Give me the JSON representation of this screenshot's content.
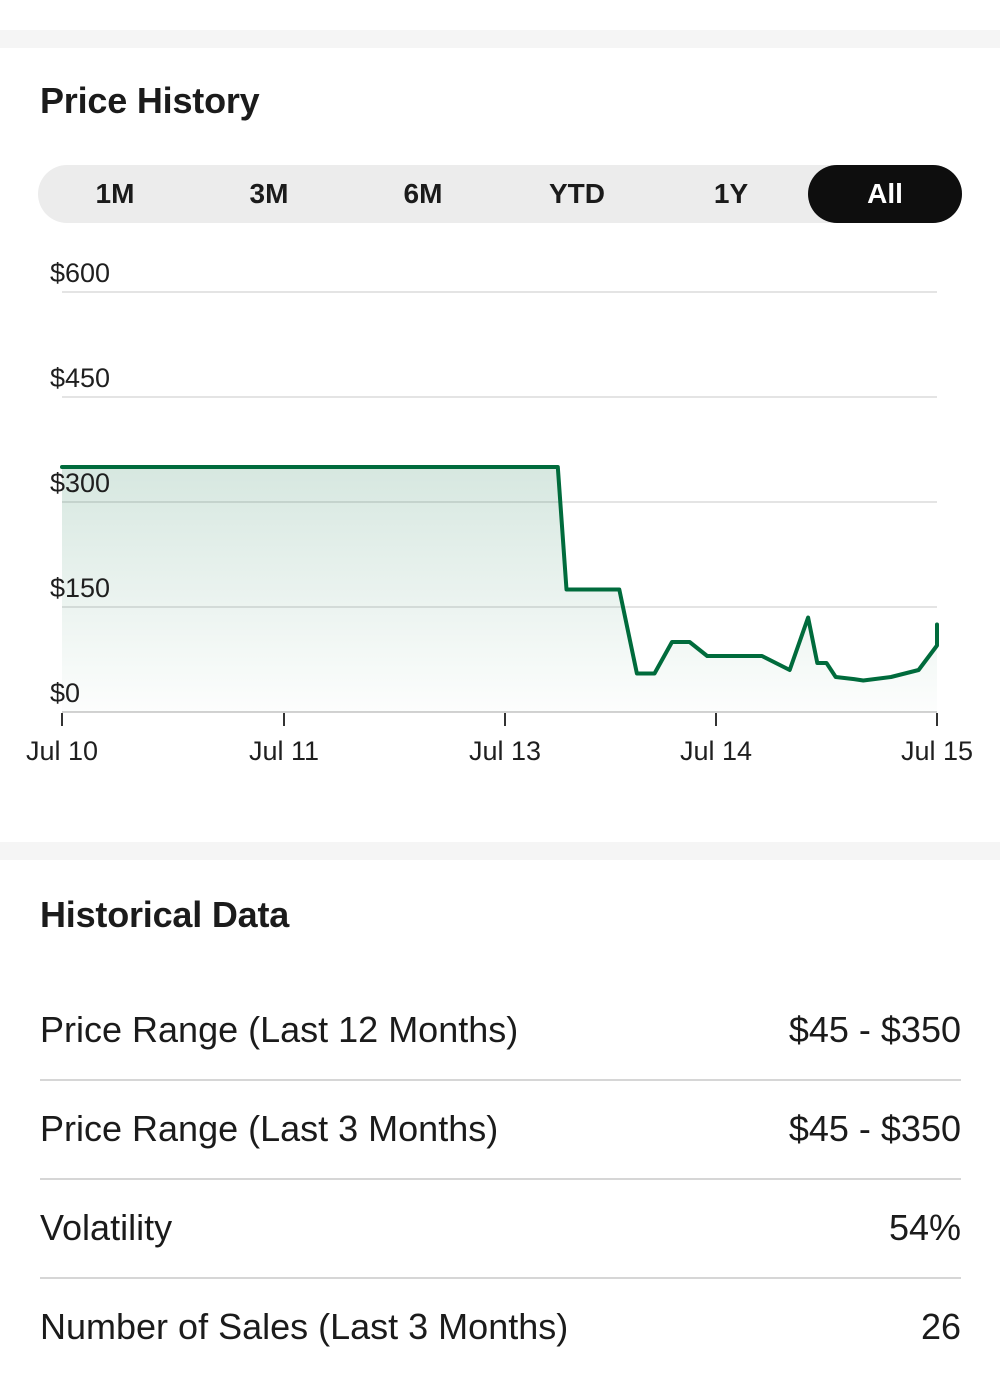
{
  "price_history": {
    "title": "Price History",
    "ranges": [
      "1M",
      "3M",
      "6M",
      "YTD",
      "1Y",
      "All"
    ],
    "active_range": "All"
  },
  "chart_data": {
    "type": "area",
    "x_tick_labels": [
      "Jul 10",
      "Jul 11",
      "Jul 13",
      "Jul 14",
      "Jul 15"
    ],
    "y_tick_labels": [
      "$0",
      "$150",
      "$300",
      "$450",
      "$600"
    ],
    "y_ticks": [
      0,
      150,
      300,
      450,
      600
    ],
    "ylim": [
      0,
      600
    ],
    "grid": true,
    "line_color": "#006b3c",
    "fill_color": "#006b3c",
    "series": [
      {
        "x": [
          "Jul 10",
          "Jul 13 06:00",
          "Jul 13 07:00",
          "Jul 13 13:00",
          "Jul 13 15:00",
          "Jul 13 17:00",
          "Jul 13 19:00",
          "Jul 13 21:00",
          "Jul 13 23:00",
          "Jul 14 01:00",
          "Jul 14 05:00",
          "Jul 14 08:00",
          "Jul 14 10:00",
          "Jul 14 11:00",
          "Jul 14 12:00",
          "Jul 14 13:00",
          "Jul 14 15:00",
          "Jul 14 16:00",
          "Jul 14 19:00",
          "Jul 14 22:00",
          "Jul 15 01:00",
          "Jul 15 03:00",
          "Jul 15 06:00",
          "Jul 15 09:00",
          "Jul 15 12:00",
          "Jul 15 14:00",
          "Jul 15 17:00",
          "Jul 15 19:00",
          "Jul 15 24:00"
        ],
        "values": [
          350,
          350,
          175,
          175,
          55,
          55,
          100,
          100,
          80,
          80,
          80,
          60,
          135,
          70,
          70,
          50,
          47,
          45,
          50,
          60,
          95,
          95,
          95,
          125,
          125,
          125,
          125,
          125,
          125
        ]
      }
    ]
  },
  "historical_data": {
    "title": "Historical Data",
    "rows": [
      {
        "label": "Price Range (Last 12 Months)",
        "value": "$45 - $350"
      },
      {
        "label": "Price Range (Last 3 Months)",
        "value": "$45 - $350"
      },
      {
        "label": "Volatility",
        "value": "54%"
      },
      {
        "label": "Number of Sales (Last 3 Months)",
        "value": "26"
      }
    ]
  }
}
